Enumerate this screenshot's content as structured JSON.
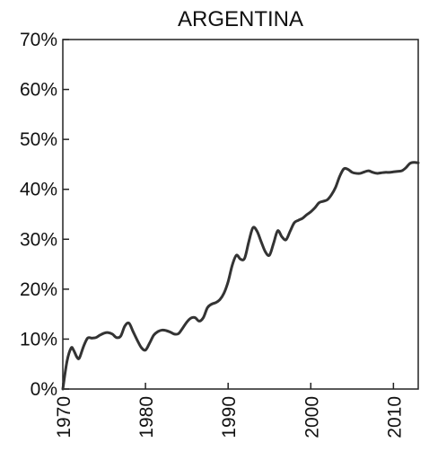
{
  "chart_data": {
    "type": "line",
    "title": "ARGENTINA",
    "xlabel": "",
    "ylabel": "",
    "xlim": [
      1970,
      2013
    ],
    "ylim": [
      0,
      70
    ],
    "grid": false,
    "x_ticks": [
      1970,
      1980,
      1990,
      2000,
      2010
    ],
    "x_tick_labels": [
      "1970",
      "1980",
      "1990",
      "2000",
      "2010"
    ],
    "y_ticks": [
      0,
      10,
      20,
      30,
      40,
      50,
      60,
      70
    ],
    "y_tick_labels": [
      "0%",
      "10%",
      "20%",
      "30%",
      "40%",
      "50%",
      "60%",
      "70%"
    ],
    "series": [
      {
        "color": "#333333",
        "points": [
          [
            1970,
            0
          ],
          [
            1970.5,
            5.5
          ],
          [
            1971,
            8.2
          ],
          [
            1971.3,
            7.8
          ],
          [
            1971.7,
            6.4
          ],
          [
            1972,
            6.2
          ],
          [
            1972.5,
            8.5
          ],
          [
            1973,
            10.2
          ],
          [
            1973.5,
            10.2
          ],
          [
            1974,
            10.3
          ],
          [
            1974.5,
            10.8
          ],
          [
            1975,
            11.2
          ],
          [
            1975.5,
            11.3
          ],
          [
            1976,
            11.0
          ],
          [
            1976.5,
            10.3
          ],
          [
            1977,
            10.6
          ],
          [
            1977.5,
            12.6
          ],
          [
            1978,
            13.2
          ],
          [
            1978.5,
            11.5
          ],
          [
            1979,
            9.8
          ],
          [
            1979.5,
            8.3
          ],
          [
            1980,
            7.8
          ],
          [
            1980.5,
            9.2
          ],
          [
            1981,
            10.8
          ],
          [
            1981.5,
            11.5
          ],
          [
            1982,
            11.8
          ],
          [
            1982.5,
            11.7
          ],
          [
            1983,
            11.4
          ],
          [
            1983.5,
            11.0
          ],
          [
            1984,
            11.1
          ],
          [
            1984.5,
            12.2
          ],
          [
            1985,
            13.4
          ],
          [
            1985.5,
            14.2
          ],
          [
            1986,
            14.3
          ],
          [
            1986.5,
            13.6
          ],
          [
            1987,
            14.3
          ],
          [
            1987.5,
            16.3
          ],
          [
            1988,
            17.0
          ],
          [
            1988.5,
            17.3
          ],
          [
            1989,
            17.9
          ],
          [
            1989.5,
            19.2
          ],
          [
            1990,
            21.5
          ],
          [
            1990.5,
            24.8
          ],
          [
            1991,
            26.8
          ],
          [
            1991.5,
            26.0
          ],
          [
            1992,
            26.2
          ],
          [
            1992.5,
            29.5
          ],
          [
            1993,
            32.3
          ],
          [
            1993.5,
            31.6
          ],
          [
            1994,
            29.5
          ],
          [
            1994.5,
            27.5
          ],
          [
            1995,
            26.8
          ],
          [
            1995.5,
            29.2
          ],
          [
            1996,
            31.7
          ],
          [
            1996.5,
            30.5
          ],
          [
            1997,
            29.9
          ],
          [
            1997.5,
            31.6
          ],
          [
            1998,
            33.3
          ],
          [
            1998.5,
            33.8
          ],
          [
            1999,
            34.2
          ],
          [
            1999.5,
            34.9
          ],
          [
            2000,
            35.5
          ],
          [
            2000.5,
            36.3
          ],
          [
            2001,
            37.3
          ],
          [
            2001.5,
            37.6
          ],
          [
            2002,
            37.9
          ],
          [
            2002.5,
            38.9
          ],
          [
            2003,
            40.4
          ],
          [
            2003.5,
            42.6
          ],
          [
            2004,
            44.1
          ],
          [
            2004.5,
            44.0
          ],
          [
            2005,
            43.4
          ],
          [
            2005.5,
            43.2
          ],
          [
            2006,
            43.2
          ],
          [
            2006.5,
            43.5
          ],
          [
            2007,
            43.7
          ],
          [
            2007.5,
            43.4
          ],
          [
            2008,
            43.2
          ],
          [
            2008.5,
            43.3
          ],
          [
            2009,
            43.4
          ],
          [
            2009.5,
            43.4
          ],
          [
            2010,
            43.5
          ],
          [
            2010.5,
            43.6
          ],
          [
            2011,
            43.7
          ],
          [
            2011.5,
            44.3
          ],
          [
            2012,
            45.2
          ],
          [
            2012.5,
            45.4
          ],
          [
            2013,
            45.3
          ]
        ]
      }
    ]
  }
}
